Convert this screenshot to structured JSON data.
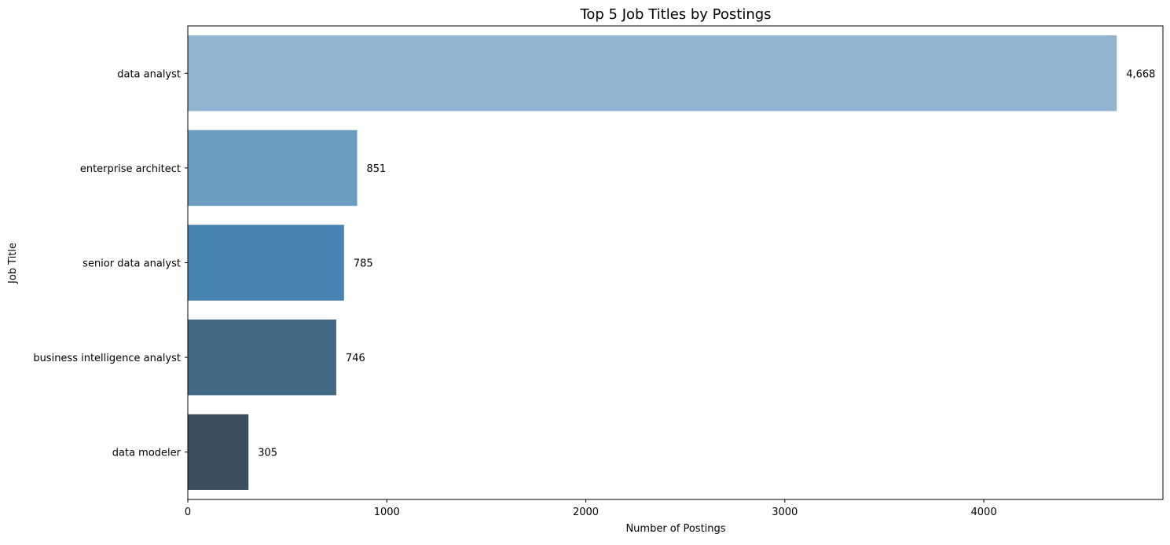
{
  "chart_data": {
    "type": "bar",
    "orientation": "horizontal",
    "title": "Top 5 Job Titles by Postings",
    "xlabel": "Number of Postings",
    "ylabel": "Job Title",
    "categories": [
      "data analyst",
      "enterprise architect",
      "senior data analyst",
      "business intelligence analyst",
      "data modeler"
    ],
    "values": [
      4668,
      851,
      785,
      746,
      305
    ],
    "value_labels": [
      "4,668",
      "851",
      "785",
      "746",
      "305"
    ],
    "colors": [
      "#91b5d0",
      "#6b9dc0",
      "#4783b0",
      "#426984",
      "#3c4f5c"
    ],
    "xlim": [
      0,
      4900
    ],
    "xticks": [
      0,
      1000,
      2000,
      3000,
      4000
    ],
    "xtick_labels": [
      "0",
      "1000",
      "2000",
      "3000",
      "4000"
    ],
    "grid": false,
    "legend": "none"
  }
}
